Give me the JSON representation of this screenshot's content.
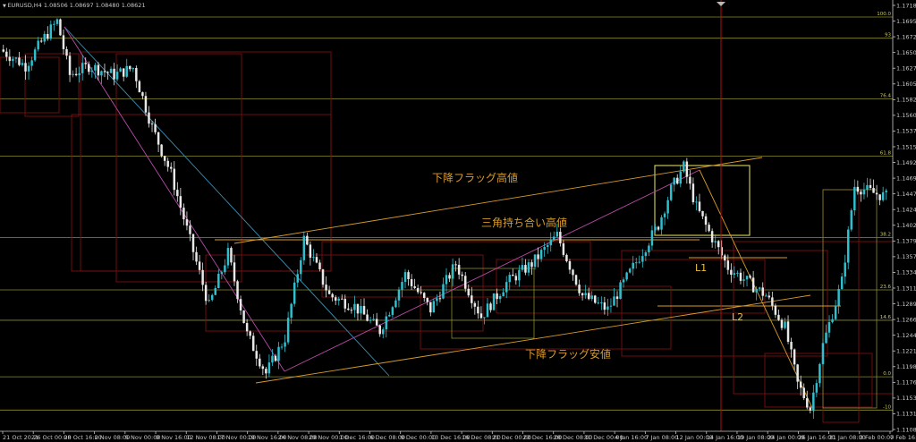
{
  "chart_data": {
    "type": "candlestick",
    "symbol_header": "EURUSD,H4  1.08506 1.08697 1.08480 1.08621",
    "y_ticks": [
      "1.17180",
      "1.16955",
      "1.16725",
      "1.16500",
      "1.16275",
      "1.16050",
      "1.15825",
      "1.15600",
      "1.15375",
      "1.15150",
      "1.14920",
      "1.14695",
      "1.14470",
      "1.14245",
      "1.14020",
      "1.13795",
      "1.13570",
      "1.13345",
      "1.13115",
      "1.12890",
      "1.12665",
      "1.12440",
      "1.12215",
      "1.11985",
      "1.11765",
      "1.11535",
      "1.11310",
      "1.11085"
    ],
    "ylim": [
      1.1108,
      1.1718
    ],
    "x_ticks": [
      "21 Oct 2021",
      "26 Oct 00:00",
      "28 Oct 16:00",
      "2 Nov 08:00",
      "5 Nov 00:00",
      "9 Nov 16:00",
      "12 Nov 08:00",
      "17 Nov 00:00",
      "19 Nov 16:00",
      "24 Nov 08:00",
      "29 Nov 00:00",
      "1 Dec 16:00",
      "6 Dec 08:00",
      "9 Dec 00:00",
      "13 Dec 16:00",
      "16 Dec 08:00",
      "21 Dec 00:00",
      "23 Dec 16:00",
      "28 Dec 08:00",
      "31 Dec 00:00",
      "4 Jan 16:00",
      "7 Jan 08:00",
      "12 Jan 00:00",
      "14 Jan 16:00",
      "19 Jan 08:00",
      "24 Jan 00:00",
      "26 Jan 16:00",
      "31 Jan 08:00",
      "3 Feb 00:00",
      "7 Feb 16:00"
    ],
    "fib_levels": [
      {
        "label": "100.0",
        "price": 1.1694
      },
      {
        "label": "93",
        "price": 1.1664
      },
      {
        "label": "76.4",
        "price": 1.1578
      },
      {
        "label": "61.8",
        "price": 1.1497
      },
      {
        "label": "38.2",
        "price": 1.1382
      },
      {
        "label": "23.6",
        "price": 1.1308
      },
      {
        "label": "14.6",
        "price": 1.1265
      },
      {
        "label": "0.0",
        "price": 1.1185
      },
      {
        "label": "-10",
        "price": 1.1138
      }
    ],
    "anchor_points": [
      {
        "x": 0,
        "y": 1.1648
      },
      {
        "x": 8,
        "y": 1.1625
      },
      {
        "x": 14,
        "y": 1.1665
      },
      {
        "x": 18,
        "y": 1.1688
      },
      {
        "x": 22,
        "y": 1.1612
      },
      {
        "x": 28,
        "y": 1.1625
      },
      {
        "x": 36,
        "y": 1.1612
      },
      {
        "x": 42,
        "y": 1.1622
      },
      {
        "x": 48,
        "y": 1.1538
      },
      {
        "x": 54,
        "y": 1.1472
      },
      {
        "x": 60,
        "y": 1.1378
      },
      {
        "x": 66,
        "y": 1.1285
      },
      {
        "x": 72,
        "y": 1.136
      },
      {
        "x": 78,
        "y": 1.1245
      },
      {
        "x": 84,
        "y": 1.119
      },
      {
        "x": 90,
        "y": 1.124
      },
      {
        "x": 96,
        "y": 1.138
      },
      {
        "x": 104,
        "y": 1.13
      },
      {
        "x": 112,
        "y": 1.1285
      },
      {
        "x": 120,
        "y": 1.125
      },
      {
        "x": 128,
        "y": 1.133
      },
      {
        "x": 136,
        "y": 1.128
      },
      {
        "x": 144,
        "y": 1.1345
      },
      {
        "x": 152,
        "y": 1.127
      },
      {
        "x": 160,
        "y": 1.1318
      },
      {
        "x": 168,
        "y": 1.1345
      },
      {
        "x": 176,
        "y": 1.1385
      },
      {
        "x": 184,
        "y": 1.13
      },
      {
        "x": 192,
        "y": 1.128
      },
      {
        "x": 200,
        "y": 1.134
      },
      {
        "x": 208,
        "y": 1.14
      },
      {
        "x": 212,
        "y": 1.145
      },
      {
        "x": 216,
        "y": 1.1482
      },
      {
        "x": 220,
        "y": 1.1425
      },
      {
        "x": 224,
        "y": 1.139
      },
      {
        "x": 230,
        "y": 1.134
      },
      {
        "x": 236,
        "y": 1.132
      },
      {
        "x": 242,
        "y": 1.13
      },
      {
        "x": 248,
        "y": 1.1255
      },
      {
        "x": 252,
        "y": 1.1175
      },
      {
        "x": 256,
        "y": 1.114
      },
      {
        "x": 260,
        "y": 1.123
      },
      {
        "x": 266,
        "y": 1.132
      },
      {
        "x": 270,
        "y": 1.1455
      },
      {
        "x": 276,
        "y": 1.1445
      },
      {
        "x": 280,
        "y": 1.144
      }
    ],
    "annotations": {
      "falling_flag_high": "下降フラッグ高値",
      "triangle_high": "三角持ち合い高値",
      "falling_flag_low": "下降フラッグ安値",
      "l1": "L1",
      "l2": "L2"
    }
  }
}
